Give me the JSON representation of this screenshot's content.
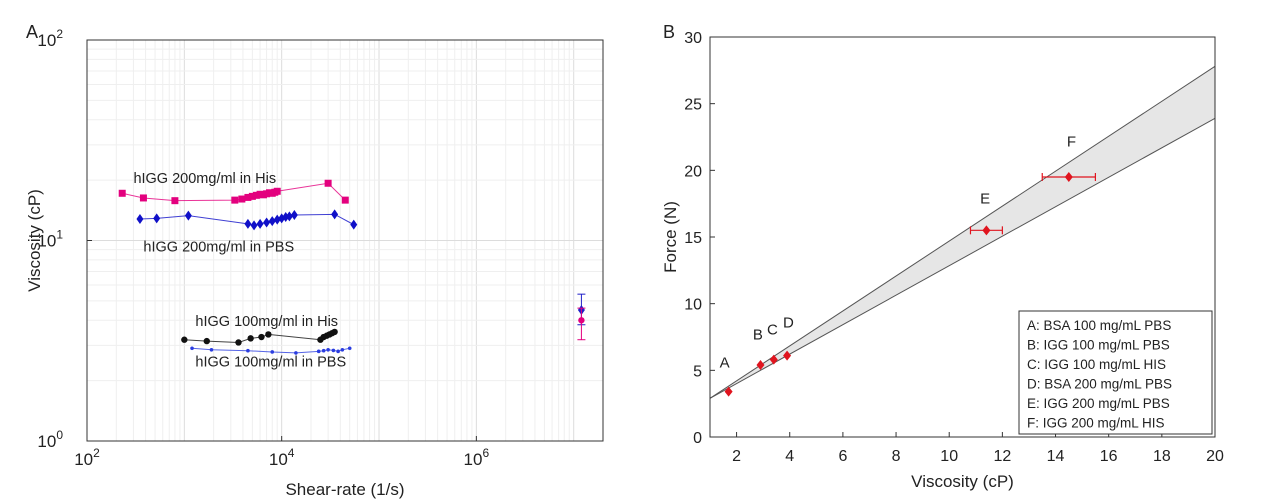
{
  "panels": {
    "A": {
      "label": "A"
    },
    "B": {
      "label": "B"
    }
  },
  "chart_data": [
    {
      "id": "A",
      "type": "scatter",
      "xscale": "log",
      "yscale": "log",
      "xlabel": "Shear-rate (1/s)",
      "ylabel": "Viscosity (cP)",
      "xlim": [
        100,
        20000000
      ],
      "ylim": [
        1,
        100
      ],
      "grid": true,
      "xticks": [
        {
          "value": 100,
          "base": "10",
          "exp": "2"
        },
        {
          "value": 10000,
          "base": "10",
          "exp": "4"
        },
        {
          "value": 1000000,
          "base": "10",
          "exp": "6"
        }
      ],
      "yticks": [
        {
          "value": 1,
          "base": "10",
          "exp": "0"
        },
        {
          "value": 10,
          "base": "10",
          "exp": "1"
        },
        {
          "value": 100,
          "base": "10",
          "exp": "2"
        }
      ],
      "series": [
        {
          "name": "hIGG 200mg/ml in His",
          "color": "#e3007e",
          "marker": "square",
          "x": [
            230,
            380,
            800,
            3300,
            3900,
            4500,
            5000,
            5500,
            6000,
            6500,
            7000,
            7500,
            8000,
            8500,
            9000,
            30000,
            45000
          ],
          "y": [
            17.2,
            16.3,
            15.8,
            15.9,
            16.1,
            16.4,
            16.6,
            16.8,
            17.0,
            16.9,
            17.1,
            17.3,
            17.2,
            17.4,
            17.6,
            19.3,
            15.9
          ]
        },
        {
          "name": "hIGG 200mg/ml in PBS",
          "color": "#1010c8",
          "marker": "diamond",
          "x": [
            350,
            520,
            1100,
            4500,
            5200,
            6000,
            7000,
            8000,
            9000,
            10000,
            11000,
            12000,
            13500,
            35000,
            55000
          ],
          "y": [
            12.8,
            12.9,
            13.3,
            12.1,
            11.9,
            12.1,
            12.3,
            12.5,
            12.7,
            12.9,
            13.1,
            13.2,
            13.4,
            13.5,
            12.0
          ]
        },
        {
          "name": "hIGG 100mg/ml in His",
          "color": "#111111",
          "marker": "circle",
          "x": [
            1000,
            1700,
            3600,
            4800,
            6200,
            7300,
            25000,
            27000,
            29000,
            31000,
            33000,
            35000
          ],
          "y": [
            3.2,
            3.15,
            3.1,
            3.25,
            3.3,
            3.4,
            3.2,
            3.3,
            3.35,
            3.4,
            3.45,
            3.5
          ]
        },
        {
          "name": "hIGG 100mg/ml in PBS",
          "color": "#2b3de0",
          "marker": "dot",
          "x": [
            1200,
            1900,
            4500,
            8000,
            14000,
            24000,
            27000,
            30000,
            34000,
            38000,
            42000,
            50000
          ],
          "y": [
            2.9,
            2.85,
            2.82,
            2.78,
            2.75,
            2.8,
            2.82,
            2.85,
            2.83,
            2.8,
            2.85,
            2.9
          ]
        }
      ],
      "errorbars": [
        {
          "x": 12000000,
          "y": 4.5,
          "lo": 3.8,
          "hi": 5.4,
          "color": "#2020c8",
          "marker": "diamond"
        },
        {
          "x": 12000000,
          "y": 4.0,
          "lo": 3.2,
          "hi": 4.6,
          "color": "#e3007e",
          "marker": "circle"
        }
      ],
      "annotations": [
        {
          "text": "hIGG 200mg/ml in His",
          "x": 300,
          "y": 19.3
        },
        {
          "text": "hIGG 200mg/ml in PBS",
          "x": 380,
          "y": 8.8
        },
        {
          "text": "hIGG 100mg/ml in His",
          "x": 1300,
          "y": 3.75
        },
        {
          "text": "hIGG 100mg/ml in PBS",
          "x": 1300,
          "y": 2.35
        }
      ]
    },
    {
      "id": "B",
      "type": "scatter",
      "xlabel": "Viscosity (cP)",
      "ylabel": "Force (N)",
      "xlim": [
        1,
        20
      ],
      "ylim": [
        0,
        30
      ],
      "grid": false,
      "xticks": [
        2,
        4,
        6,
        8,
        10,
        12,
        14,
        16,
        18,
        20
      ],
      "yticks": [
        0,
        5,
        10,
        15,
        20,
        25,
        30
      ],
      "band": {
        "upper": [
          [
            1,
            2.9
          ],
          [
            20,
            27.8
          ]
        ],
        "lower": [
          [
            1,
            2.9
          ],
          [
            20,
            23.9
          ]
        ],
        "fill": "#e6e6e6",
        "stroke": "#555555"
      },
      "points": [
        {
          "label": "A",
          "x": 1.7,
          "y": 3.4,
          "xerr": 0,
          "lx": 1.55,
          "ly": 5.2
        },
        {
          "label": "B",
          "x": 2.9,
          "y": 5.4,
          "xerr": 0,
          "lx": 2.8,
          "ly": 7.3
        },
        {
          "label": "C",
          "x": 3.4,
          "y": 5.8,
          "xerr": 0,
          "lx": 3.35,
          "ly": 7.7
        },
        {
          "label": "D",
          "x": 3.9,
          "y": 6.1,
          "xerr": 0,
          "lx": 3.95,
          "ly": 8.2
        },
        {
          "label": "E",
          "x": 11.4,
          "y": 15.5,
          "xerr": 0.6,
          "lx": 11.35,
          "ly": 17.5
        },
        {
          "label": "F",
          "x": 14.5,
          "y": 19.5,
          "xerr": 1.0,
          "lx": 14.6,
          "ly": 21.8
        }
      ],
      "point_color": "#e0141e",
      "legend": {
        "placement": "bottom-right",
        "entries": [
          "A: BSA 100 mg/mL PBS",
          "B: IGG 100 mg/mL PBS",
          "C: IGG 100 mg/mL HIS",
          "D: BSA 200 mg/mL PBS",
          "E: IGG 200 mg/mL PBS",
          "F: IGG 200 mg/mL HIS"
        ]
      }
    }
  ]
}
